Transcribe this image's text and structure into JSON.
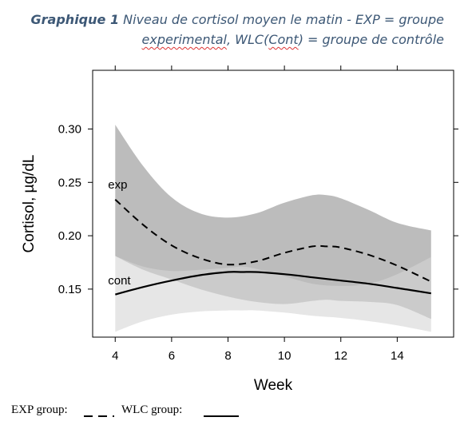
{
  "caption": {
    "lead": "Graphique 1",
    "text_a": " Niveau de cortisol moyen le matin - EXP = groupe ",
    "text_b": "experimental",
    "text_c": ", WLC(",
    "text_d": "Cont",
    "text_e": ") = groupe de contrôle"
  },
  "legend": {
    "exp_label": "EXP group:",
    "wlc_label": "WLC group:"
  },
  "chart_data": {
    "type": "line",
    "title": "",
    "xlabel": "Week",
    "ylabel": "Cortisol, µg/dL",
    "xlim": [
      3.2,
      16.0
    ],
    "ylim": [
      0.105,
      0.355
    ],
    "xticks": [
      4,
      6,
      8,
      10,
      12,
      14
    ],
    "yticks": [
      0.15,
      0.2,
      0.25,
      0.3
    ],
    "ytick_labels": [
      "0.15",
      "0.20",
      "0.25",
      "0.30"
    ],
    "grid": false,
    "series": [
      {
        "name": "exp",
        "style": "dashed",
        "color": "#000000",
        "band_color": "#bcbcbc",
        "x": [
          4,
          5,
          6,
          7,
          8,
          9,
          10,
          11,
          11.5,
          12,
          13,
          14,
          15.2
        ],
        "values": [
          0.234,
          0.21,
          0.191,
          0.179,
          0.173,
          0.176,
          0.184,
          0.19,
          0.19,
          0.189,
          0.182,
          0.172,
          0.157
        ],
        "upper": [
          0.304,
          0.265,
          0.236,
          0.221,
          0.217,
          0.221,
          0.231,
          0.238,
          0.238,
          0.235,
          0.224,
          0.212,
          0.205
        ],
        "lower": [
          0.181,
          0.168,
          0.159,
          0.15,
          0.143,
          0.138,
          0.136,
          0.139,
          0.14,
          0.139,
          0.138,
          0.135,
          0.122
        ]
      },
      {
        "name": "cont",
        "style": "solid",
        "color": "#000000",
        "band_color": "#d6d6d6",
        "x": [
          4,
          5,
          6,
          7,
          8,
          8.5,
          9,
          10,
          11,
          12,
          13,
          14,
          15.2
        ],
        "values": [
          0.145,
          0.152,
          0.158,
          0.163,
          0.166,
          0.166,
          0.166,
          0.164,
          0.161,
          0.158,
          0.155,
          0.151,
          0.146
        ],
        "upper": [
          0.181,
          0.171,
          0.167,
          0.168,
          0.17,
          0.171,
          0.169,
          0.162,
          0.155,
          0.153,
          0.155,
          0.164,
          0.18
        ],
        "lower": [
          0.11,
          0.12,
          0.126,
          0.129,
          0.13,
          0.13,
          0.13,
          0.128,
          0.125,
          0.123,
          0.12,
          0.116,
          0.11
        ]
      }
    ],
    "annotations": [
      {
        "text": "exp",
        "x": 4.0,
        "y": 0.248
      },
      {
        "text": "cont",
        "x": 4.0,
        "y": 0.158
      }
    ]
  }
}
